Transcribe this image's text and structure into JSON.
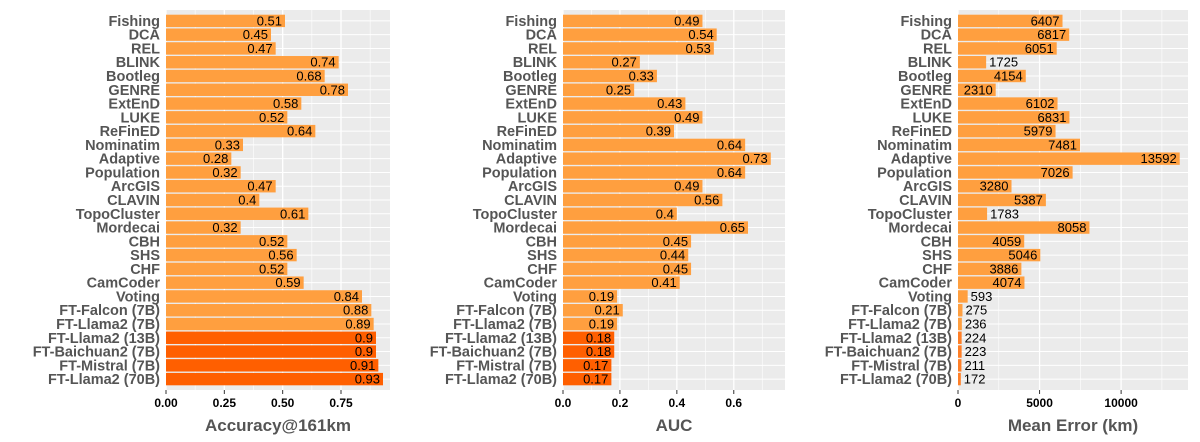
{
  "colors": {
    "panel_bg": "#ebebeb",
    "grid": "#ffffff",
    "bar_light": "#ff9f3f",
    "bar_medium": "#ff7f27",
    "bar_dark": "#ff5f00",
    "category_text": "#555555"
  },
  "chart_data": [
    {
      "type": "bar",
      "orientation": "horizontal",
      "xlabel": "Accuracy@161km",
      "xlim": [
        0,
        0.96
      ],
      "ticks": [
        0,
        0.25,
        0.5,
        0.75
      ],
      "tick_labels": [
        "0.00",
        "0.25",
        "0.50",
        "0.75"
      ],
      "categories": [
        "Fishing",
        "DCA",
        "REL",
        "BLINK",
        "Bootleg",
        "GENRE",
        "ExtEnD",
        "LUKE",
        "ReFinED",
        "Nominatim",
        "Adaptive",
        "Population",
        "ArcGIS",
        "CLAVIN",
        "TopoCluster",
        "Mordecai",
        "CBH",
        "SHS",
        "CHF",
        "CamCoder",
        "Voting",
        "FT-Falcon (7B)",
        "FT-Llama2 (7B)",
        "FT-Llama2 (13B)",
        "FT-Baichuan2 (7B)",
        "FT-Mistral (7B)",
        "FT-Llama2 (70B)"
      ],
      "values": [
        0.51,
        0.45,
        0.47,
        0.74,
        0.68,
        0.78,
        0.58,
        0.52,
        0.64,
        0.33,
        0.28,
        0.32,
        0.47,
        0.4,
        0.61,
        0.32,
        0.52,
        0.56,
        0.52,
        0.59,
        0.84,
        0.88,
        0.89,
        0.9,
        0.9,
        0.91,
        0.93
      ],
      "labels": [
        "0.51",
        "0.45",
        "0.47",
        "0.74",
        "0.68",
        "0.78",
        "0.58",
        "0.52",
        "0.64",
        "0.33",
        "0.28",
        "0.32",
        "0.47",
        "0.4",
        "0.61",
        "0.32",
        "0.52",
        "0.56",
        "0.52",
        "0.59",
        "0.84",
        "0.88",
        "0.89",
        "0.9",
        "0.9",
        "0.91",
        "0.93"
      ],
      "shade": [
        "light",
        "light",
        "light",
        "light",
        "light",
        "light",
        "light",
        "light",
        "light",
        "light",
        "light",
        "light",
        "light",
        "light",
        "light",
        "light",
        "light",
        "light",
        "light",
        "light",
        "light",
        "light",
        "light",
        "dark",
        "dark",
        "dark",
        "dark"
      ]
    },
    {
      "type": "bar",
      "orientation": "horizontal",
      "xlabel": "AUC",
      "xlim": [
        0,
        0.78
      ],
      "ticks": [
        0,
        0.2,
        0.4,
        0.6
      ],
      "tick_labels": [
        "0.0",
        "0.2",
        "0.4",
        "0.6"
      ],
      "categories": [
        "Fishing",
        "DCA",
        "REL",
        "BLINK",
        "Bootleg",
        "GENRE",
        "ExtEnD",
        "LUKE",
        "ReFinED",
        "Nominatim",
        "Adaptive",
        "Population",
        "ArcGIS",
        "CLAVIN",
        "TopoCluster",
        "Mordecai",
        "CBH",
        "SHS",
        "CHF",
        "CamCoder",
        "Voting",
        "FT-Falcon (7B)",
        "FT-Llama2 (7B)",
        "FT-Llama2 (13B)",
        "FT-Baichuan2 (7B)",
        "FT-Mistral (7B)",
        "FT-Llama2 (70B)"
      ],
      "values": [
        0.49,
        0.54,
        0.53,
        0.27,
        0.33,
        0.25,
        0.43,
        0.49,
        0.39,
        0.64,
        0.73,
        0.64,
        0.49,
        0.56,
        0.4,
        0.65,
        0.45,
        0.44,
        0.45,
        0.41,
        0.19,
        0.21,
        0.19,
        0.18,
        0.18,
        0.17,
        0.17
      ],
      "labels": [
        "0.49",
        "0.54",
        "0.53",
        "0.27",
        "0.33",
        "0.25",
        "0.43",
        "0.49",
        "0.39",
        "0.64",
        "0.73",
        "0.64",
        "0.49",
        "0.56",
        "0.4",
        "0.65",
        "0.45",
        "0.44",
        "0.45",
        "0.41",
        "0.19",
        "0.21",
        "0.19",
        "0.18",
        "0.18",
        "0.17",
        "0.17"
      ],
      "shade": [
        "light",
        "light",
        "light",
        "light",
        "light",
        "light",
        "light",
        "light",
        "light",
        "light",
        "light",
        "light",
        "light",
        "light",
        "light",
        "light",
        "light",
        "light",
        "light",
        "light",
        "light",
        "light",
        "light",
        "dark",
        "dark",
        "dark",
        "dark"
      ]
    },
    {
      "type": "bar",
      "orientation": "horizontal",
      "xlabel": "Mean Error (km)",
      "xlim": [
        0,
        14100
      ],
      "ticks": [
        0,
        5000,
        10000
      ],
      "tick_labels": [
        "0",
        "5000",
        "10000"
      ],
      "categories": [
        "Fishing",
        "DCA",
        "REL",
        "BLINK",
        "Bootleg",
        "GENRE",
        "ExtEnD",
        "LUKE",
        "ReFinED",
        "Nominatim",
        "Adaptive",
        "Population",
        "ArcGIS",
        "CLAVIN",
        "TopoCluster",
        "Mordecai",
        "CBH",
        "SHS",
        "CHF",
        "CamCoder",
        "Voting",
        "FT-Falcon (7B)",
        "FT-Llama2 (7B)",
        "FT-Llama2 (13B)",
        "FT-Baichuan2 (7B)",
        "FT-Mistral (7B)",
        "FT-Llama2 (70B)"
      ],
      "values": [
        6407,
        6817,
        6051,
        1725,
        4154,
        2310,
        6102,
        6831,
        5979,
        7481,
        13592,
        7026,
        3280,
        5387,
        1783,
        8058,
        4059,
        5046,
        3886,
        4074,
        593,
        275,
        236,
        224,
        223,
        211,
        172
      ],
      "labels": [
        "6407",
        "6817",
        "6051",
        "1725",
        "4154",
        "2310",
        "6102",
        "6831",
        "5979",
        "7481",
        "13592",
        "7026",
        "3280",
        "5387",
        "1783",
        "8058",
        "4059",
        "5046",
        "3886",
        "4074",
        "593",
        "275",
        "236",
        "224",
        "223",
        "211",
        "172"
      ],
      "shade": [
        "light",
        "light",
        "light",
        "light",
        "light",
        "light",
        "light",
        "light",
        "light",
        "light",
        "light",
        "light",
        "light",
        "light",
        "light",
        "light",
        "light",
        "light",
        "light",
        "light",
        "light",
        "light",
        "light",
        "medium",
        "medium",
        "medium",
        "medium"
      ]
    }
  ]
}
